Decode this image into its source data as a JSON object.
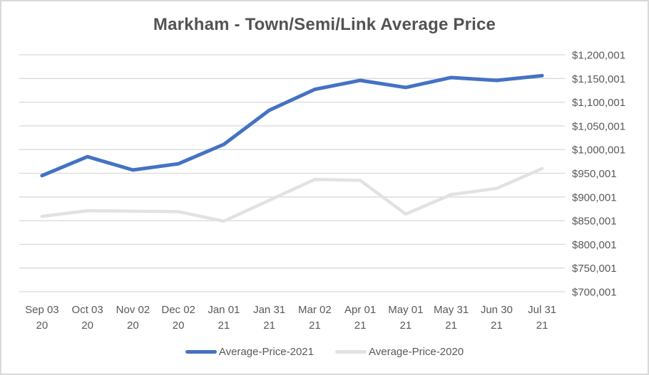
{
  "chart_data": {
    "type": "line",
    "title": "Markham - Town/Semi/Link Average Price",
    "categories": [
      {
        "date": "Sep 03",
        "year": "20"
      },
      {
        "date": "Oct 03",
        "year": "20"
      },
      {
        "date": "Nov 02",
        "year": "20"
      },
      {
        "date": "Dec 02",
        "year": "20"
      },
      {
        "date": "Jan 01",
        "year": "21"
      },
      {
        "date": "Jan 31",
        "year": "21"
      },
      {
        "date": "Mar 02",
        "year": "21"
      },
      {
        "date": "Apr 01",
        "year": "21"
      },
      {
        "date": "May 01",
        "year": "21"
      },
      {
        "date": "May 31",
        "year": "21"
      },
      {
        "date": "Jun 30",
        "year": "21"
      },
      {
        "date": "Jul 31",
        "year": "21"
      }
    ],
    "series": [
      {
        "name": "Average-Price-2021",
        "color": "#4472c4",
        "stroke_width": 5,
        "values": [
          945000,
          985000,
          957000,
          970000,
          1011000,
          1083000,
          1127000,
          1146000,
          1131000,
          1152000,
          1146000,
          1156000
        ]
      },
      {
        "name": "Average-Price-2020",
        "color": "#e2e2e2",
        "stroke_width": 4.5,
        "values": [
          859000,
          871000,
          870000,
          869000,
          849000,
          893000,
          937000,
          935000,
          864000,
          905000,
          918000,
          960000
        ]
      }
    ],
    "y_axis": {
      "side": "right",
      "min": 700001,
      "max": 1200001,
      "step": 50000,
      "tick_labels": [
        "$1,200,001",
        "$1,150,001",
        "$1,100,001",
        "$1,050,001",
        "$1,000,001",
        "$950,001",
        "$900,001",
        "$850,001",
        "$800,001",
        "$750,001",
        "$700,001"
      ],
      "gridline_color": "#d9d9d9",
      "label_color": "#595959"
    },
    "legend": {
      "position": "bottom"
    }
  }
}
